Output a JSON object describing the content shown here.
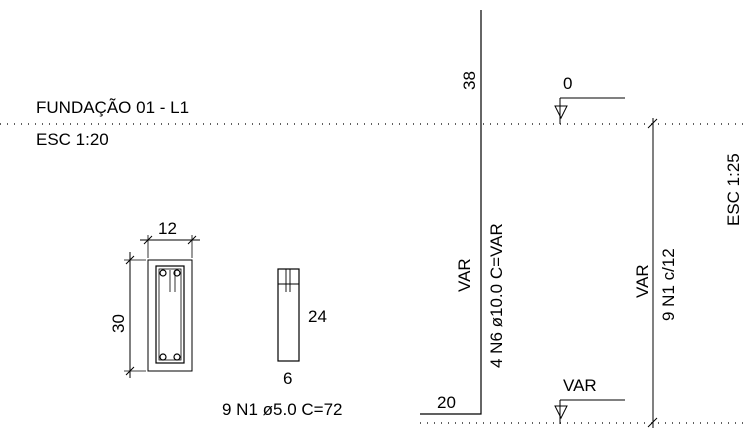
{
  "title": {
    "name": "FUNDAÇÃO 01 - L1",
    "scale_left": "ESC 1:20",
    "scale_right": "ESC 1:25"
  },
  "section": {
    "width": "12",
    "height": "30",
    "stirrup_height": "24",
    "stirrup_width": "6",
    "stirrup_spec": "9 N1 ø5.0  C=72"
  },
  "elevation": {
    "top_length": "38",
    "bottom_length": "20",
    "height_label": "VAR",
    "bar_spec": "4 N6 ø10.0  C=VAR",
    "level_top": "0",
    "level_bottom": "VAR",
    "stirrup_height_label": "VAR",
    "stirrup_dist": "9 N1 c/12"
  }
}
